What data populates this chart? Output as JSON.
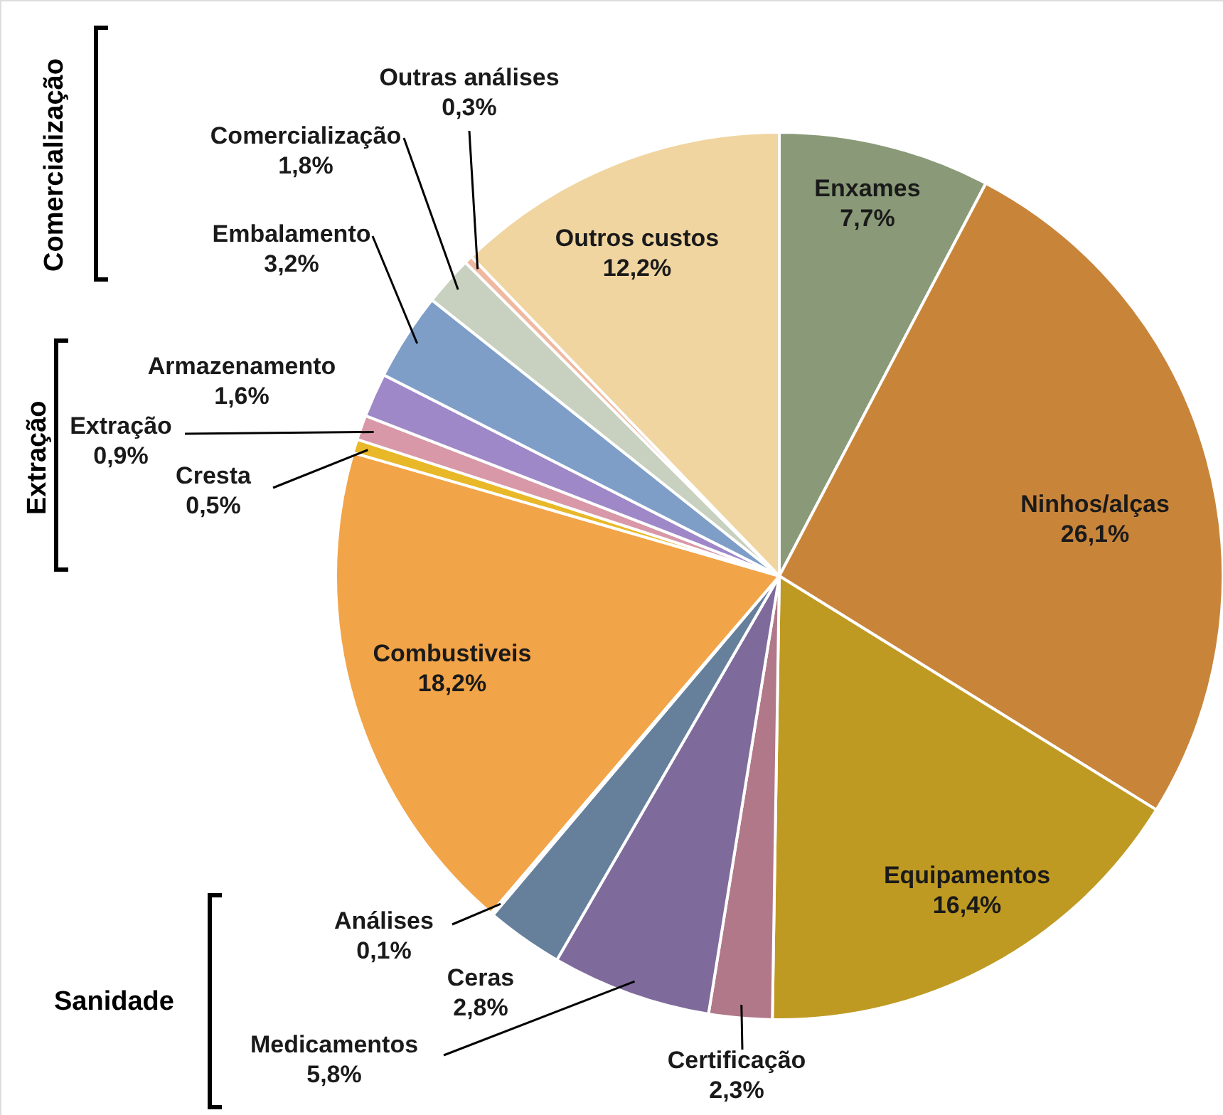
{
  "chart_data": {
    "type": "pie",
    "categories": [
      "Enxames",
      "Ninhos/alças",
      "Equipamentos",
      "Certificação",
      "Medicamentos",
      "Ceras",
      "Análises",
      "Combustiveis",
      "Cresta",
      "Extração",
      "Armazenamento",
      "Embalamento",
      "Comercialização",
      "Outras análises",
      "Outros custos"
    ],
    "values": [
      7.7,
      26.1,
      16.4,
      2.3,
      5.8,
      2.8,
      0.1,
      18.2,
      0.5,
      0.9,
      1.6,
      3.2,
      1.8,
      0.3,
      12.2
    ],
    "value_labels": [
      "7,7%",
      "26,1%",
      "16,4%",
      "2,3%",
      "5,8%",
      "2,8%",
      "0,1%",
      "18,2%",
      "0,5%",
      "0,9%",
      "1,6%",
      "3,2%",
      "1,8%",
      "0,3%",
      "12,2%"
    ],
    "colors": [
      "#8a9a78",
      "#c8853a",
      "#bf9a22",
      "#b07888",
      "#7f6a9c",
      "#66809c",
      "#7fa0c4",
      "#f2a448",
      "#e8b828",
      "#d898a8",
      "#9e88c8",
      "#7e9ec8",
      "#c8d0c0",
      "#f0b8a0",
      "#f0d5a0"
    ],
    "annotations": [
      "Comercialização",
      "Extração",
      "Sanidade"
    ]
  }
}
